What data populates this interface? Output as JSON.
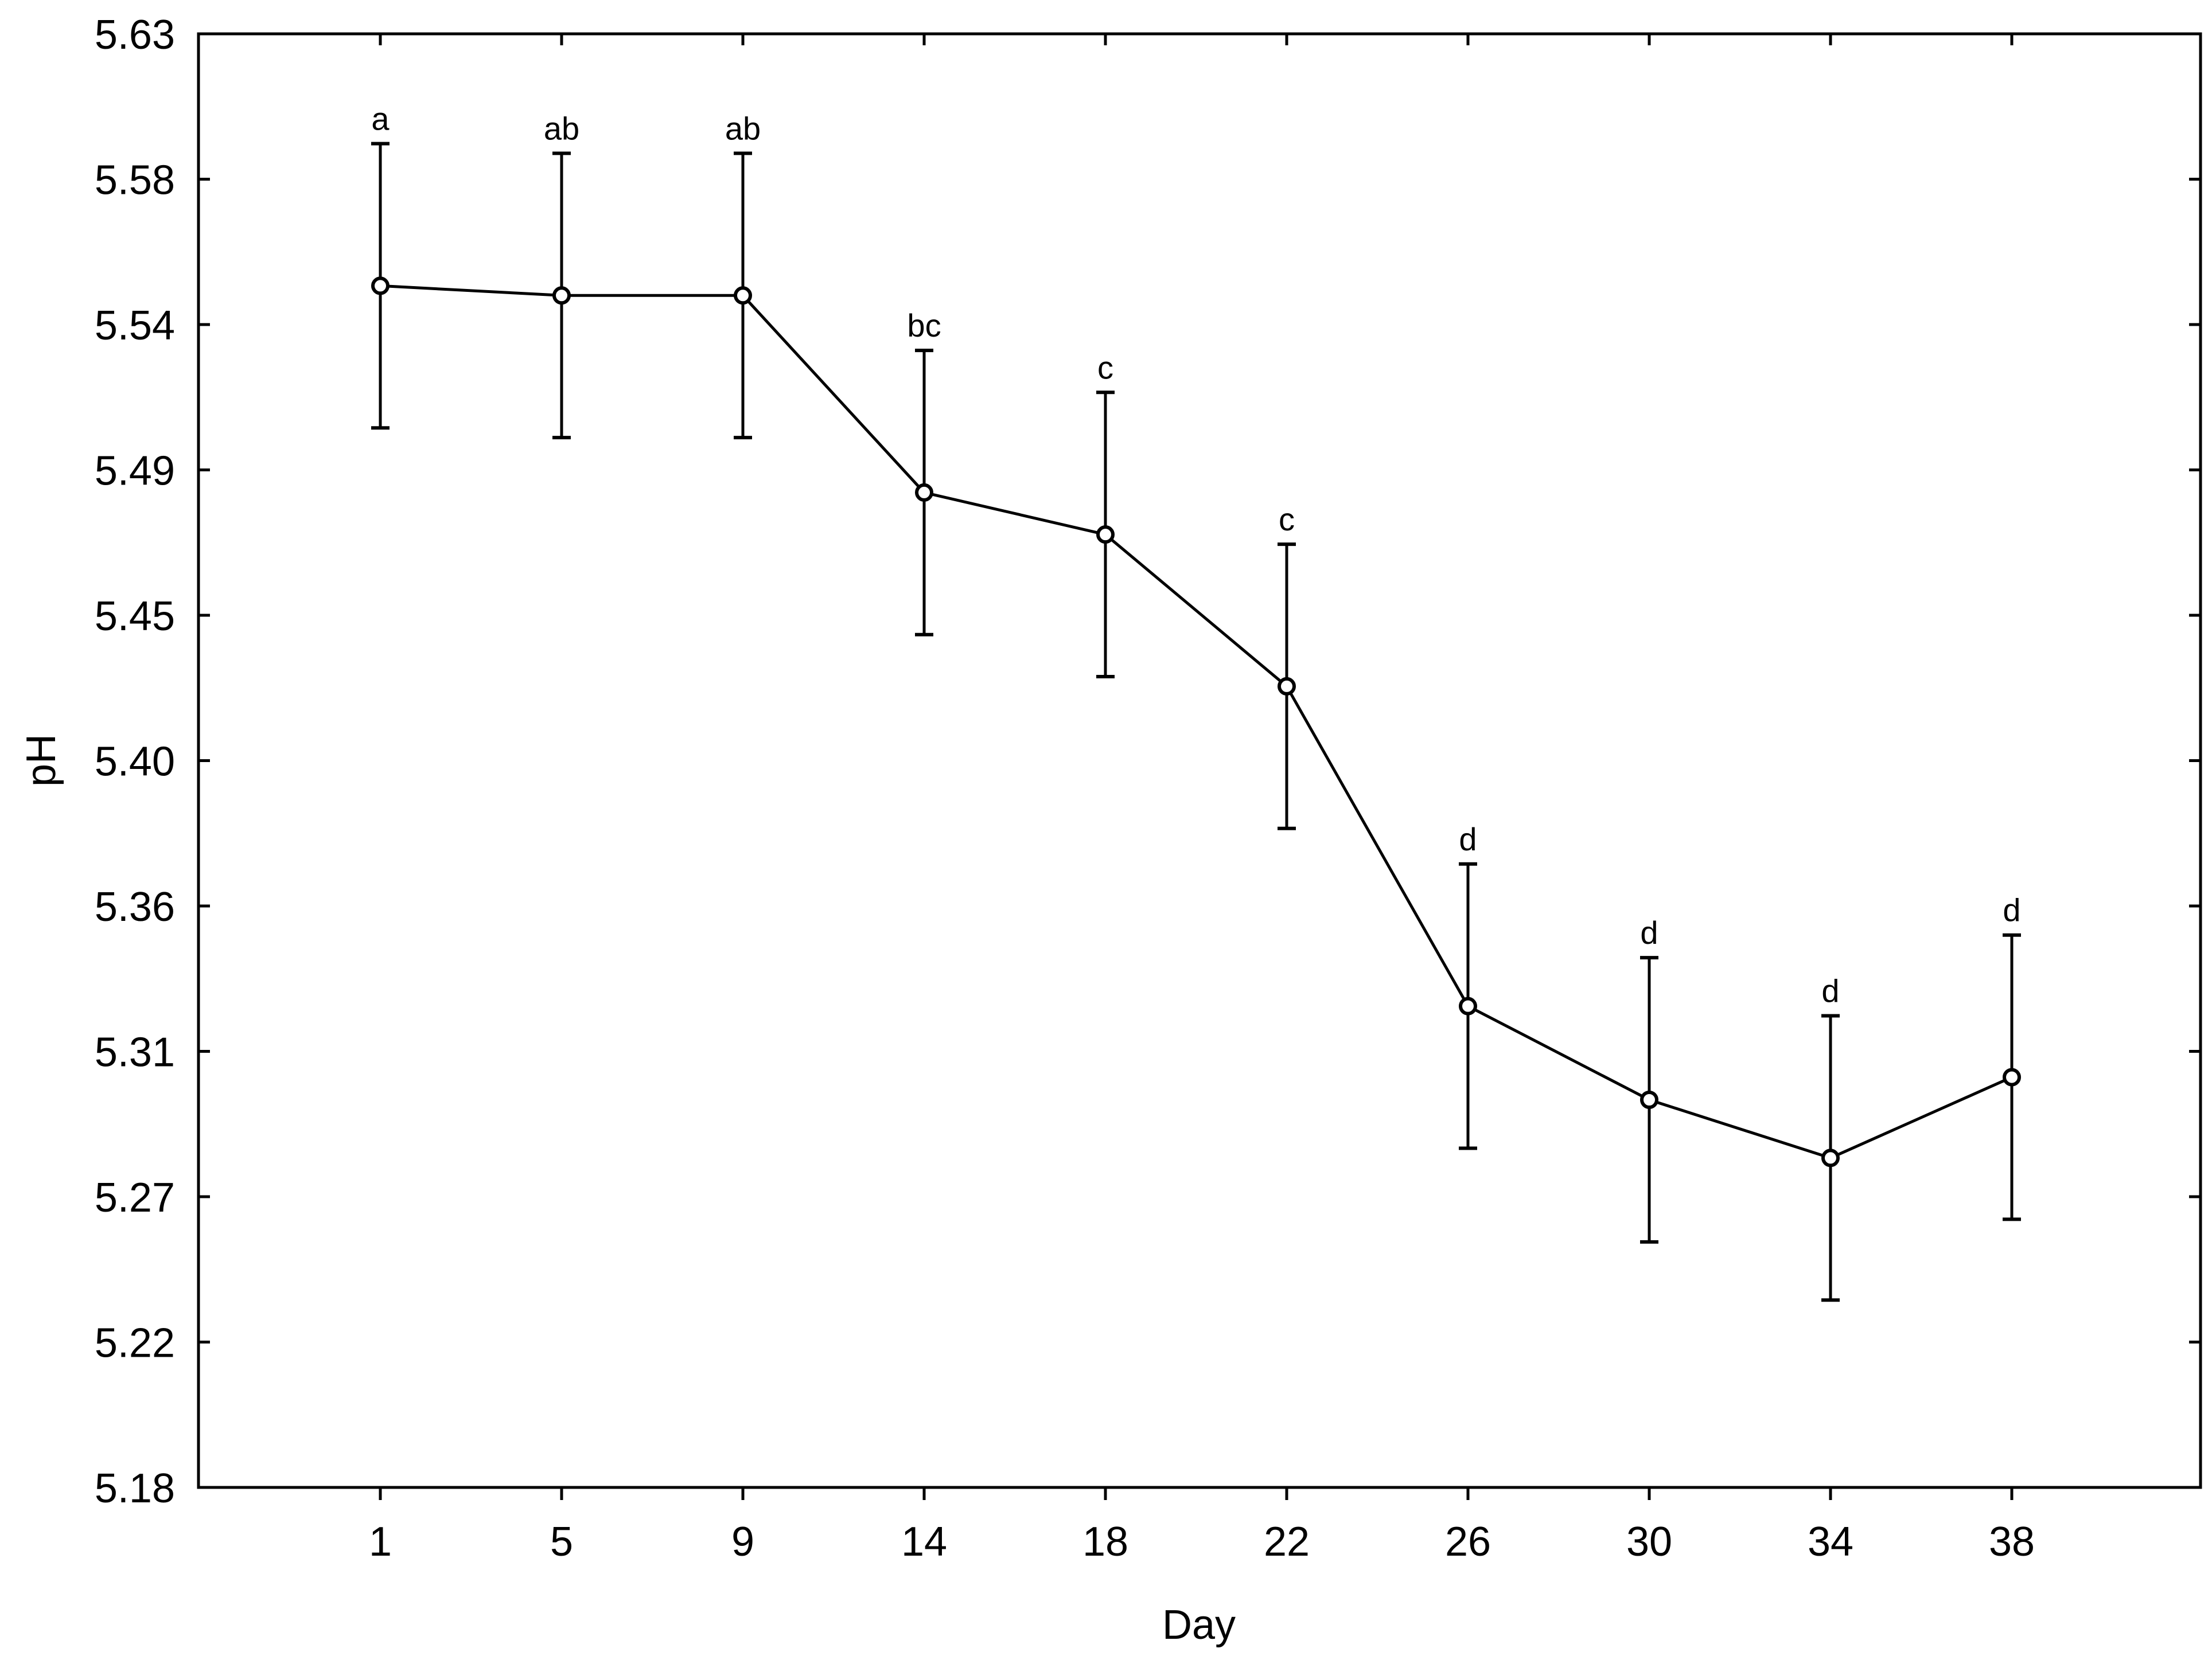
{
  "chart_data": {
    "type": "line",
    "title": "",
    "xlabel": "Day",
    "ylabel": "pH",
    "categories": [
      "1",
      "5",
      "9",
      "14",
      "18",
      "22",
      "26",
      "30",
      "34",
      "38"
    ],
    "series": [
      {
        "values": [
          5.552,
          5.549,
          5.549,
          5.488,
          5.475,
          5.428,
          5.329,
          5.3,
          5.282,
          5.307
        ],
        "error": [
          0.044,
          0.044,
          0.044,
          0.044,
          0.044,
          0.044,
          0.044,
          0.044,
          0.044,
          0.044
        ],
        "marker": "open-circle",
        "color": "#000000"
      }
    ],
    "significance_labels": [
      "a",
      "ab",
      "ab",
      "bc",
      "c",
      "c",
      "d",
      "d",
      "d",
      "d"
    ],
    "ylim": [
      5.18,
      5.63
    ],
    "yticks": [
      "5.18",
      "5.22",
      "5.27",
      "5.31",
      "5.36",
      "5.40",
      "5.45",
      "5.49",
      "5.54",
      "5.58",
      "5.63"
    ],
    "grid": false,
    "legend": "none"
  }
}
